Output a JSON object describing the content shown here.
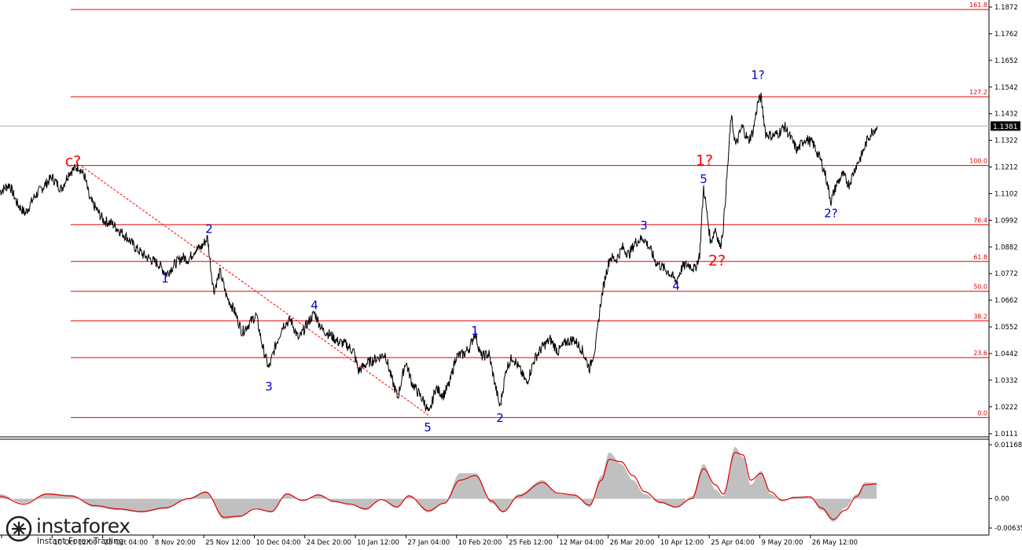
{
  "chart_data": [
    {
      "type": "line",
      "subtype": "price-candles",
      "x_ticks": [
        "",
        "10 Oct 12:00",
        "25 Oct 04:00",
        "8 Nov 20:00",
        "25 Nov 12:00",
        "10 Dec 04:00",
        "24 Dec 20:00",
        "10 Jan 12:00",
        "27 Jan 04:00",
        "10 Feb 20:00",
        "25 Feb 12:00",
        "12 Mar 04:00",
        "26 Mar 20:00",
        "10 Apr 12:00",
        "25 Apr 04:00",
        "9 May 20:00",
        "26 May 12:00"
      ],
      "y_ticks": [
        "1.1872",
        "1.1762",
        "1.1652",
        "1.1542",
        "1.1432",
        "1.1322",
        "1.1212",
        "1.1102",
        "1.0992",
        "1.0882",
        "1.0772",
        "1.0662",
        "1.0552",
        "1.0442",
        "1.0332",
        "1.0222",
        "1.0111"
      ],
      "ylim": [
        1.0111,
        1.1872
      ],
      "current_price": "1.1381",
      "fib_levels": [
        {
          "label": "161.8",
          "price": 1.1862
        },
        {
          "label": "127.2",
          "price": 1.1502
        },
        {
          "label": "100.0",
          "price": 1.1218
        },
        {
          "label": "76.4",
          "price": 1.0974
        },
        {
          "label": "61.8",
          "price": 1.0822
        },
        {
          "label": "50.0",
          "price": 1.0699
        },
        {
          "label": "38.2",
          "price": 1.0577
        },
        {
          "label": "23.6",
          "price": 1.0425
        },
        {
          "label": "0.0",
          "price": 1.0178
        }
      ],
      "wave_labels": [
        {
          "text": "c?",
          "color": "#ff0000",
          "big": true,
          "xi": 93,
          "price": 1.1215
        },
        {
          "text": "1",
          "color": "#0000cc",
          "big": false,
          "xi": 210,
          "price": 1.0735
        },
        {
          "text": "2",
          "color": "#0000cc",
          "big": false,
          "xi": 266,
          "price": 1.094
        },
        {
          "text": "3",
          "color": "#0000cc",
          "big": false,
          "xi": 342,
          "price": 1.029
        },
        {
          "text": "4",
          "color": "#0000cc",
          "big": false,
          "xi": 400,
          "price": 1.0625
        },
        {
          "text": "5",
          "color": "#0000cc",
          "big": false,
          "xi": 544,
          "price": 1.012
        },
        {
          "text": "1",
          "color": "#0000cc",
          "big": false,
          "xi": 604,
          "price": 1.052
        },
        {
          "text": "2",
          "color": "#0000cc",
          "big": false,
          "xi": 636,
          "price": 1.016
        },
        {
          "text": "3",
          "color": "#0000cc",
          "big": false,
          "xi": 819,
          "price": 1.0955
        },
        {
          "text": "4",
          "color": "#0000cc",
          "big": false,
          "xi": 860,
          "price": 1.0705
        },
        {
          "text": "5",
          "color": "#0000cc",
          "big": false,
          "xi": 895,
          "price": 1.1145
        },
        {
          "text": "1?",
          "color": "#ff0000",
          "big": true,
          "xi": 896,
          "price": 1.1218
        },
        {
          "text": "2?",
          "color": "#ff0000",
          "big": true,
          "xi": 912,
          "price": 1.0805
        },
        {
          "text": "1?",
          "color": "#0000cc",
          "big": false,
          "xi": 964,
          "price": 1.1575
        },
        {
          "text": "2?",
          "color": "#0000cc",
          "big": false,
          "xi": 1057,
          "price": 1.1005
        }
      ],
      "price_path": [
        [
          0,
          1.111
        ],
        [
          12,
          1.114
        ],
        [
          22,
          1.106
        ],
        [
          32,
          1.102
        ],
        [
          44,
          1.109
        ],
        [
          55,
          1.113
        ],
        [
          66,
          1.117
        ],
        [
          78,
          1.112
        ],
        [
          88,
          1.119
        ],
        [
          100,
          1.1215
        ],
        [
          108,
          1.117
        ],
        [
          114,
          1.108
        ],
        [
          122,
          1.104
        ],
        [
          132,
          1.099
        ],
        [
          142,
          1.098
        ],
        [
          152,
          1.095
        ],
        [
          162,
          1.092
        ],
        [
          172,
          1.088
        ],
        [
          182,
          1.085
        ],
        [
          192,
          1.083
        ],
        [
          202,
          1.081
        ],
        [
          212,
          1.077
        ],
        [
          222,
          1.081
        ],
        [
          232,
          1.084
        ],
        [
          240,
          1.083
        ],
        [
          248,
          1.087
        ],
        [
          256,
          1.088
        ],
        [
          264,
          1.092
        ],
        [
          268,
          1.08
        ],
        [
          272,
          1.07
        ],
        [
          280,
          1.078
        ],
        [
          288,
          1.068
        ],
        [
          298,
          1.062
        ],
        [
          308,
          1.053
        ],
        [
          318,
          1.057
        ],
        [
          326,
          1.06
        ],
        [
          334,
          1.047
        ],
        [
          342,
          1.038
        ],
        [
          350,
          1.047
        ],
        [
          360,
          1.056
        ],
        [
          370,
          1.058
        ],
        [
          380,
          1.05
        ],
        [
          390,
          1.056
        ],
        [
          400,
          1.061
        ],
        [
          410,
          1.054
        ],
        [
          420,
          1.052
        ],
        [
          430,
          1.049
        ],
        [
          440,
          1.048
        ],
        [
          450,
          1.045
        ],
        [
          456,
          1.037
        ],
        [
          466,
          1.04
        ],
        [
          478,
          1.042
        ],
        [
          490,
          1.044
        ],
        [
          498,
          1.034
        ],
        [
          506,
          1.026
        ],
        [
          516,
          1.041
        ],
        [
          524,
          1.032
        ],
        [
          532,
          1.028
        ],
        [
          540,
          1.024
        ],
        [
          546,
          1.019
        ],
        [
          554,
          1.03
        ],
        [
          564,
          1.027
        ],
        [
          572,
          1.032
        ],
        [
          580,
          1.043
        ],
        [
          590,
          1.044
        ],
        [
          598,
          1.047
        ],
        [
          604,
          1.053
        ],
        [
          612,
          1.043
        ],
        [
          622,
          1.044
        ],
        [
          630,
          1.031
        ],
        [
          636,
          1.022
        ],
        [
          644,
          1.038
        ],
        [
          652,
          1.043
        ],
        [
          662,
          1.037
        ],
        [
          670,
          1.032
        ],
        [
          680,
          1.042
        ],
        [
          690,
          1.047
        ],
        [
          700,
          1.05
        ],
        [
          710,
          1.045
        ],
        [
          720,
          1.049
        ],
        [
          730,
          1.05
        ],
        [
          740,
          1.046
        ],
        [
          750,
          1.038
        ],
        [
          758,
          1.048
        ],
        [
          764,
          1.065
        ],
        [
          770,
          1.076
        ],
        [
          776,
          1.084
        ],
        [
          784,
          1.083
        ],
        [
          792,
          1.088
        ],
        [
          800,
          1.085
        ],
        [
          808,
          1.09
        ],
        [
          818,
          1.092
        ],
        [
          826,
          1.088
        ],
        [
          834,
          1.082
        ],
        [
          842,
          1.08
        ],
        [
          850,
          1.078
        ],
        [
          860,
          1.074
        ],
        [
          868,
          1.08
        ],
        [
          876,
          1.081
        ],
        [
          884,
          1.079
        ],
        [
          890,
          1.085
        ],
        [
          895,
          1.113
        ],
        [
          900,
          1.1
        ],
        [
          904,
          1.09
        ],
        [
          910,
          1.096
        ],
        [
          916,
          1.088
        ],
        [
          920,
          1.096
        ],
        [
          926,
          1.123
        ],
        [
          930,
          1.142
        ],
        [
          936,
          1.13
        ],
        [
          944,
          1.138
        ],
        [
          952,
          1.132
        ],
        [
          958,
          1.136
        ],
        [
          964,
          1.148
        ],
        [
          968,
          1.15
        ],
        [
          974,
          1.135
        ],
        [
          982,
          1.134
        ],
        [
          990,
          1.135
        ],
        [
          998,
          1.138
        ],
        [
          1006,
          1.133
        ],
        [
          1014,
          1.128
        ],
        [
          1024,
          1.133
        ],
        [
          1034,
          1.131
        ],
        [
          1044,
          1.124
        ],
        [
          1050,
          1.118
        ],
        [
          1057,
          1.107
        ],
        [
          1064,
          1.114
        ],
        [
          1072,
          1.118
        ],
        [
          1080,
          1.114
        ],
        [
          1088,
          1.121
        ],
        [
          1096,
          1.126
        ],
        [
          1104,
          1.133
        ],
        [
          1110,
          1.136
        ],
        [
          1116,
          1.1381
        ]
      ]
    },
    {
      "type": "area",
      "subtype": "oscillator",
      "y_ticks": [
        "0.01168",
        "0.00",
        "-0.00635"
      ],
      "ylim": [
        -0.00635,
        0.01168
      ],
      "histogram": [
        [
          0,
          0.001
        ],
        [
          30,
          -0.001
        ],
        [
          60,
          0.0012
        ],
        [
          90,
          0.0008
        ],
        [
          120,
          -0.0018
        ],
        [
          150,
          -0.0025
        ],
        [
          180,
          -0.003
        ],
        [
          210,
          -0.0022
        ],
        [
          240,
          0.0002
        ],
        [
          262,
          0.0016
        ],
        [
          285,
          -0.0045
        ],
        [
          305,
          -0.004
        ],
        [
          325,
          -0.002
        ],
        [
          345,
          -0.003
        ],
        [
          365,
          0.0012
        ],
        [
          385,
          -0.0005
        ],
        [
          405,
          0.001
        ],
        [
          425,
          -0.0008
        ],
        [
          445,
          -0.0012
        ],
        [
          465,
          -0.0025
        ],
        [
          485,
          0.0
        ],
        [
          505,
          -0.002
        ],
        [
          520,
          0.0008
        ],
        [
          545,
          -0.003
        ],
        [
          565,
          -0.001
        ],
        [
          585,
          0.0055
        ],
        [
          605,
          0.0055
        ],
        [
          625,
          -0.001
        ],
        [
          640,
          -0.003
        ],
        [
          660,
          0.001
        ],
        [
          690,
          0.004
        ],
        [
          710,
          0.001
        ],
        [
          730,
          0.0008
        ],
        [
          750,
          -0.0018
        ],
        [
          765,
          0.005
        ],
        [
          775,
          0.01
        ],
        [
          790,
          0.0075
        ],
        [
          805,
          0.004
        ],
        [
          820,
          0.001
        ],
        [
          840,
          -0.001
        ],
        [
          860,
          -0.002
        ],
        [
          880,
          0.0005
        ],
        [
          895,
          0.0075
        ],
        [
          910,
          0.002
        ],
        [
          920,
          0.0005
        ],
        [
          935,
          0.0112
        ],
        [
          945,
          0.009
        ],
        [
          955,
          0.003
        ],
        [
          968,
          0.006
        ],
        [
          980,
          0.001
        ],
        [
          995,
          -0.0005
        ],
        [
          1010,
          0.0005
        ],
        [
          1030,
          0.0005
        ],
        [
          1045,
          -0.0025
        ],
        [
          1060,
          -0.005
        ],
        [
          1075,
          -0.002
        ],
        [
          1090,
          0.001
        ],
        [
          1100,
          0.0035
        ],
        [
          1115,
          0.0035
        ]
      ],
      "signal": [
        [
          0,
          0.0005
        ],
        [
          30,
          -0.0012
        ],
        [
          60,
          0.001
        ],
        [
          90,
          0.0006
        ],
        [
          120,
          -0.0015
        ],
        [
          150,
          -0.0022
        ],
        [
          180,
          -0.0028
        ],
        [
          210,
          -0.002
        ],
        [
          240,
          0.0
        ],
        [
          262,
          0.0014
        ],
        [
          285,
          -0.004
        ],
        [
          305,
          -0.0038
        ],
        [
          325,
          -0.0022
        ],
        [
          345,
          -0.0028
        ],
        [
          365,
          0.001
        ],
        [
          385,
          -0.0004
        ],
        [
          405,
          0.0008
        ],
        [
          425,
          -0.0006
        ],
        [
          445,
          -0.0012
        ],
        [
          465,
          -0.0022
        ],
        [
          485,
          -0.0002
        ],
        [
          505,
          -0.0018
        ],
        [
          520,
          0.0006
        ],
        [
          545,
          -0.0026
        ],
        [
          565,
          -0.001
        ],
        [
          585,
          0.004
        ],
        [
          605,
          0.005
        ],
        [
          625,
          -0.0005
        ],
        [
          640,
          -0.0028
        ],
        [
          660,
          0.0006
        ],
        [
          690,
          0.0035
        ],
        [
          710,
          0.0012
        ],
        [
          730,
          0.0008
        ],
        [
          750,
          -0.0014
        ],
        [
          765,
          0.004
        ],
        [
          775,
          0.0085
        ],
        [
          790,
          0.008
        ],
        [
          805,
          0.005
        ],
        [
          820,
          0.0015
        ],
        [
          840,
          -0.0008
        ],
        [
          860,
          -0.0018
        ],
        [
          880,
          0.0
        ],
        [
          895,
          0.0065
        ],
        [
          910,
          0.003
        ],
        [
          920,
          0.001
        ],
        [
          935,
          0.01
        ],
        [
          945,
          0.0095
        ],
        [
          955,
          0.004
        ],
        [
          968,
          0.0055
        ],
        [
          980,
          0.0015
        ],
        [
          995,
          -0.0004
        ],
        [
          1010,
          0.0002
        ],
        [
          1030,
          0.0004
        ],
        [
          1045,
          -0.002
        ],
        [
          1060,
          -0.0045
        ],
        [
          1075,
          -0.0025
        ],
        [
          1090,
          0.0005
        ],
        [
          1100,
          0.003
        ],
        [
          1115,
          0.0032
        ]
      ]
    }
  ],
  "logo": {
    "name": "instaforex",
    "tagline": "Instant Forex Trading"
  },
  "colors": {
    "price": "#000000",
    "fib_line": "#e00000",
    "trend_line": "#ff0000",
    "histogram": "#c0c0c0",
    "signal": "#e00000",
    "axis": "#000000",
    "current_price_bg": "#000000"
  }
}
